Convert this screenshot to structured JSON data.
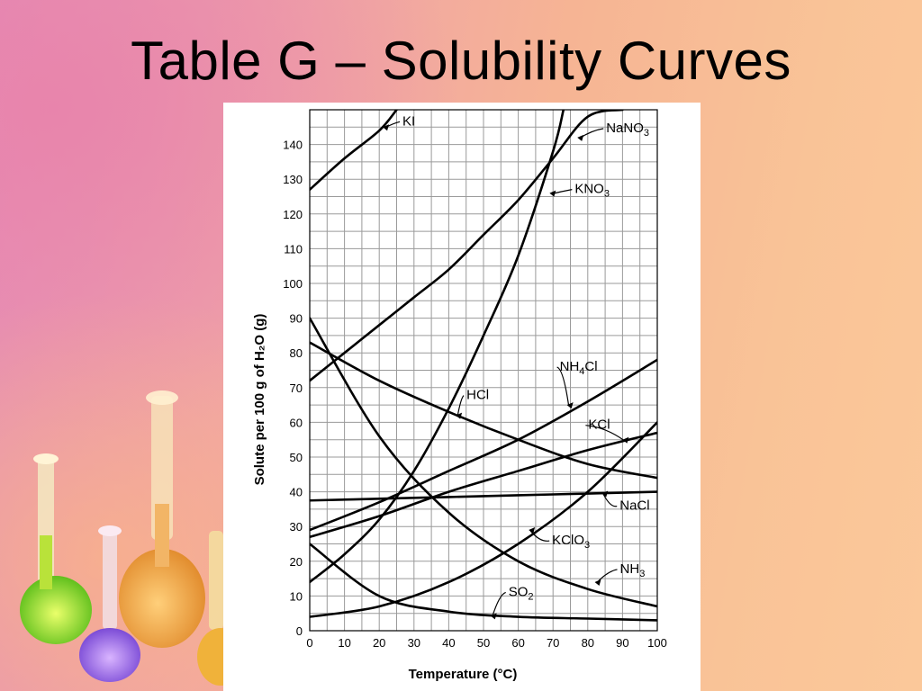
{
  "slide": {
    "title": "Table G – Solubility Curves"
  },
  "colors": {
    "curve": "#000000",
    "grid": "#9a9a9a",
    "panel": "#ffffff"
  },
  "decoration": {
    "icon": "lab-flasks-illustration"
  },
  "chart_data": {
    "type": "line",
    "title": "",
    "xlabel": "Temperature (°C)",
    "ylabel": "Solute per 100 g of H₂O (g)",
    "xlim": [
      0,
      100
    ],
    "ylim": [
      0,
      150
    ],
    "xticks": [
      0,
      10,
      20,
      30,
      40,
      50,
      60,
      70,
      80,
      90,
      100
    ],
    "yticks": [
      0,
      10,
      20,
      30,
      40,
      50,
      60,
      70,
      80,
      90,
      100,
      110,
      120,
      130,
      140
    ],
    "grid": true,
    "legend": "none",
    "series": [
      {
        "name": "KI",
        "label_main": "KI",
        "label_sub": "",
        "x": [
          0,
          10,
          20,
          25
        ],
        "y": [
          127,
          136,
          144,
          150
        ]
      },
      {
        "name": "NaNO₃",
        "label_main": "NaNO",
        "label_sub": "3",
        "x": [
          0,
          10,
          20,
          30,
          40,
          50,
          60,
          70,
          80,
          90
        ],
        "y": [
          72,
          80,
          88,
          96,
          104,
          114,
          124,
          136,
          148,
          150
        ]
      },
      {
        "name": "KNO₃",
        "label_main": "KNO",
        "label_sub": "3",
        "x": [
          0,
          10,
          20,
          30,
          40,
          50,
          60,
          70,
          73
        ],
        "y": [
          14,
          22,
          32,
          46,
          64,
          85,
          108,
          138,
          150
        ]
      },
      {
        "name": "NH₄Cl",
        "label_main": "NH",
        "label_sub": "4",
        "label_tail": "Cl",
        "x": [
          0,
          20,
          40,
          60,
          80,
          100
        ],
        "y": [
          29,
          37,
          46,
          55,
          66,
          78
        ]
      },
      {
        "name": "HCl",
        "label_main": "HCl",
        "label_sub": "",
        "x": [
          0,
          20,
          40,
          60,
          80,
          100
        ],
        "y": [
          83,
          72,
          63,
          55,
          48,
          44
        ]
      },
      {
        "name": "KCl",
        "label_main": "KCl",
        "label_sub": "",
        "x": [
          0,
          20,
          40,
          60,
          80,
          100
        ],
        "y": [
          27,
          33,
          40,
          46,
          52,
          57
        ]
      },
      {
        "name": "NaCl",
        "label_main": "NaCl",
        "label_sub": "",
        "x": [
          0,
          20,
          40,
          60,
          80,
          100
        ],
        "y": [
          37.5,
          38,
          38.5,
          39,
          39.5,
          40
        ]
      },
      {
        "name": "KClO₃",
        "label_main": "KClO",
        "label_sub": "3",
        "x": [
          0,
          20,
          40,
          60,
          80,
          100
        ],
        "y": [
          4,
          7,
          14,
          25,
          40,
          60
        ]
      },
      {
        "name": "NH₃",
        "label_main": "NH",
        "label_sub": "3",
        "x": [
          0,
          20,
          40,
          60,
          80,
          100
        ],
        "y": [
          90,
          56,
          34,
          20,
          12,
          7
        ]
      },
      {
        "name": "SO₂",
        "label_main": "SO",
        "label_sub": "2",
        "x": [
          0,
          20,
          40,
          60,
          80,
          100
        ],
        "y": [
          25,
          10,
          5.5,
          4,
          3.5,
          3
        ]
      }
    ]
  }
}
